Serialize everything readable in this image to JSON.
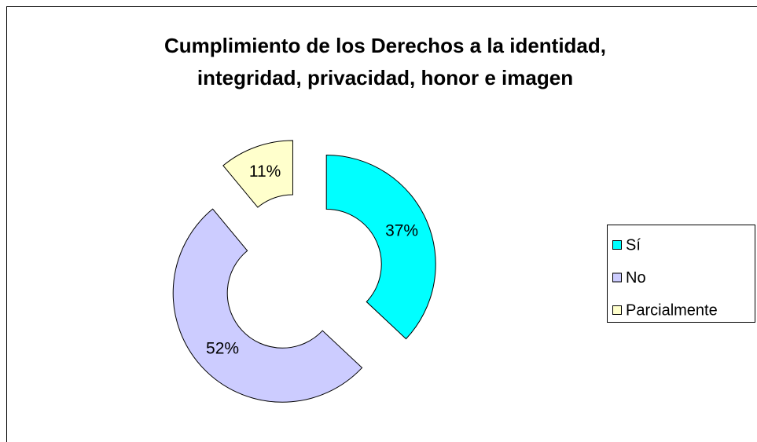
{
  "chart_data": {
    "type": "doughnut",
    "title": [
      "Cumplimiento de los Derechos a la identidad,",
      "integridad, privacidad, honor e imagen"
    ],
    "categories": [
      "Sí",
      "No",
      "Parcialmente"
    ],
    "values": [
      37,
      52,
      11
    ],
    "value_labels": [
      "37%",
      "52%",
      "11%"
    ],
    "colors": [
      "#00ffff",
      "#ccccff",
      "#ffffcc"
    ],
    "legend": "right"
  }
}
